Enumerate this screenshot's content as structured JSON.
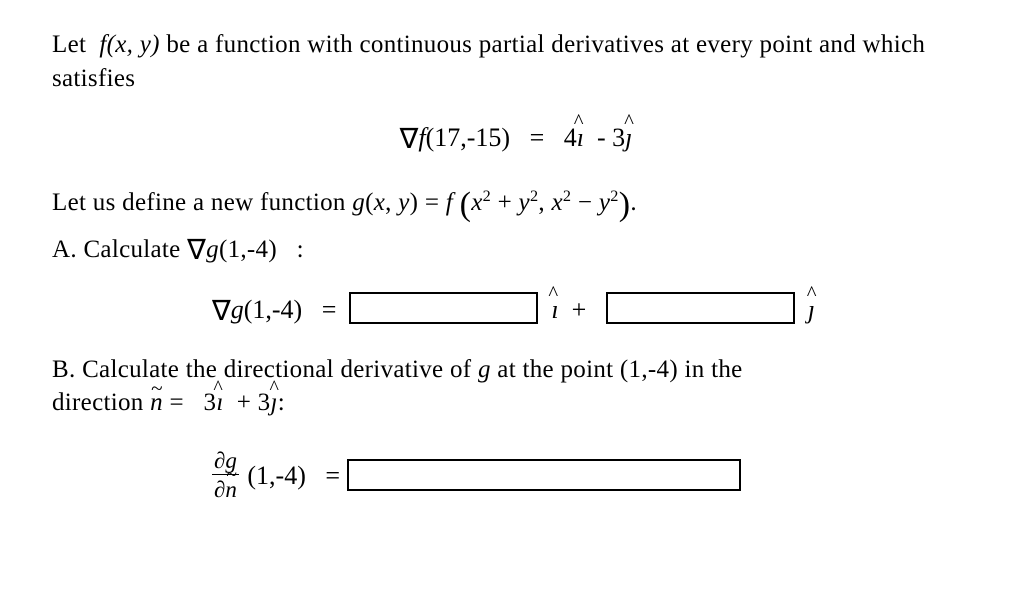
{
  "text_color": "#000000",
  "background_color": "#ffffff",
  "base_fontsize": 25,
  "box_border_color": "#000000",
  "intro": {
    "line": "be a function with continuous partial derivatives at every point and which satisfies",
    "fxy": "f(x, y)"
  },
  "gradf": {
    "lhs": "∇f(17,-15)",
    "rhs": "4ı̂  - 3ȷ̂",
    "i_coef": "4",
    "j_coef": "3"
  },
  "defn": {
    "prefix": "Let us define a new function ",
    "gexpr": "g(x, y) = f (x² + y², x² − y²)."
  },
  "partA": {
    "label": "A. Calculate ",
    "target": "∇g(1,-4)",
    "colon": "  :",
    "lhs": "∇g(1,-4)",
    "sep_i": "ı̂  + ",
    "sep_j": "ȷ̂"
  },
  "partB": {
    "line1": "B. Calculate the directional derivative of ",
    "g": "g",
    "mid": " at the point (1,-4)    in the",
    "line2_prefix": "direction ",
    "n_eq": " =    3ı̂  + 3ȷ̂:",
    "i_coef": "3",
    "j_coef": "3"
  },
  "dirderiv": {
    "num": "∂g",
    "den": "∂n",
    "point": " (1,-4)"
  }
}
